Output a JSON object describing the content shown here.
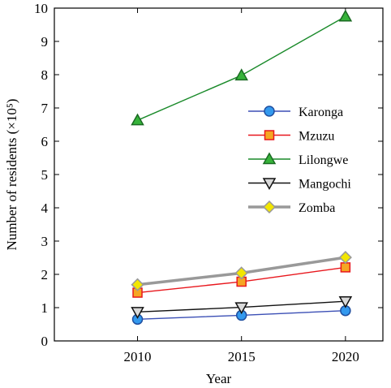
{
  "chart_data": {
    "type": "line",
    "xlabel": "Year",
    "ylabel": "Number of residents (×10⁵)",
    "x": [
      2010,
      2015,
      2020
    ],
    "xlim": [
      2006,
      2021.8
    ],
    "ylim": [
      0,
      10
    ],
    "xticks": [
      2010,
      2015,
      2020
    ],
    "yticks": [
      0,
      1,
      2,
      3,
      4,
      5,
      6,
      7,
      8,
      9,
      10
    ],
    "grid": false,
    "legend_position": "center-right",
    "series": [
      {
        "name": "Karonga",
        "values": [
          0.65,
          0.77,
          0.91
        ],
        "line_color": "#3b4fb5",
        "marker": "circle",
        "marker_fill": "#3399ee",
        "marker_edge": "#1f4fa0"
      },
      {
        "name": "Mzuzu",
        "values": [
          1.45,
          1.78,
          2.21
        ],
        "line_color": "#e8171d",
        "marker": "square",
        "marker_fill": "#f5a623",
        "marker_edge": "#e8171d"
      },
      {
        "name": "Lilongwe",
        "values": [
          6.63,
          7.98,
          9.75
        ],
        "line_color": "#1a8a2a",
        "marker": "triangle-up",
        "marker_fill": "#36b33a",
        "marker_edge": "#1a6a22"
      },
      {
        "name": "Mangochi",
        "values": [
          0.87,
          1.01,
          1.19
        ],
        "line_color": "#111111",
        "marker": "triangle-down",
        "marker_fill": "#d9d9d9",
        "marker_edge": "#111111"
      },
      {
        "name": "Zomba",
        "values": [
          1.69,
          2.04,
          2.51
        ],
        "line_color": "#999999",
        "marker": "diamond",
        "marker_fill": "#f2e600",
        "marker_edge": "#999999"
      }
    ]
  }
}
